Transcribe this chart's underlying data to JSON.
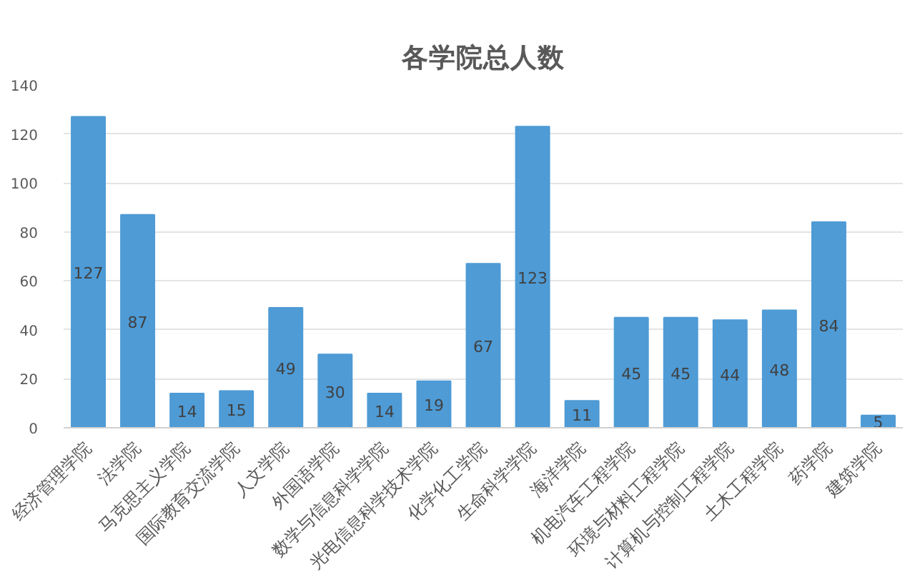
{
  "chart_data": {
    "type": "bar",
    "title": "各学院总人数",
    "categories": [
      "经济管理学院",
      "法学院",
      "马克思主义学院",
      "国际教育交流学院",
      "人文学院",
      "外国语学院",
      "数学与信息科学学院",
      "光电信息科学技术学院",
      "化学化工学院",
      "生命科学学院",
      "海洋学院",
      "机电汽车工程学院",
      "环境与材料工程学院",
      "计算机与控制工程学院",
      "土木工程学院",
      "药学院",
      "建筑学院"
    ],
    "values": [
      127,
      87,
      14,
      15,
      49,
      30,
      14,
      19,
      67,
      123,
      11,
      45,
      45,
      44,
      48,
      84,
      5
    ],
    "color": "#4e9bd6",
    "ylim": [
      0,
      140
    ],
    "yticks": [
      0,
      20,
      40,
      60,
      80,
      100,
      120,
      140
    ],
    "grid": "y",
    "data_labels": true
  }
}
